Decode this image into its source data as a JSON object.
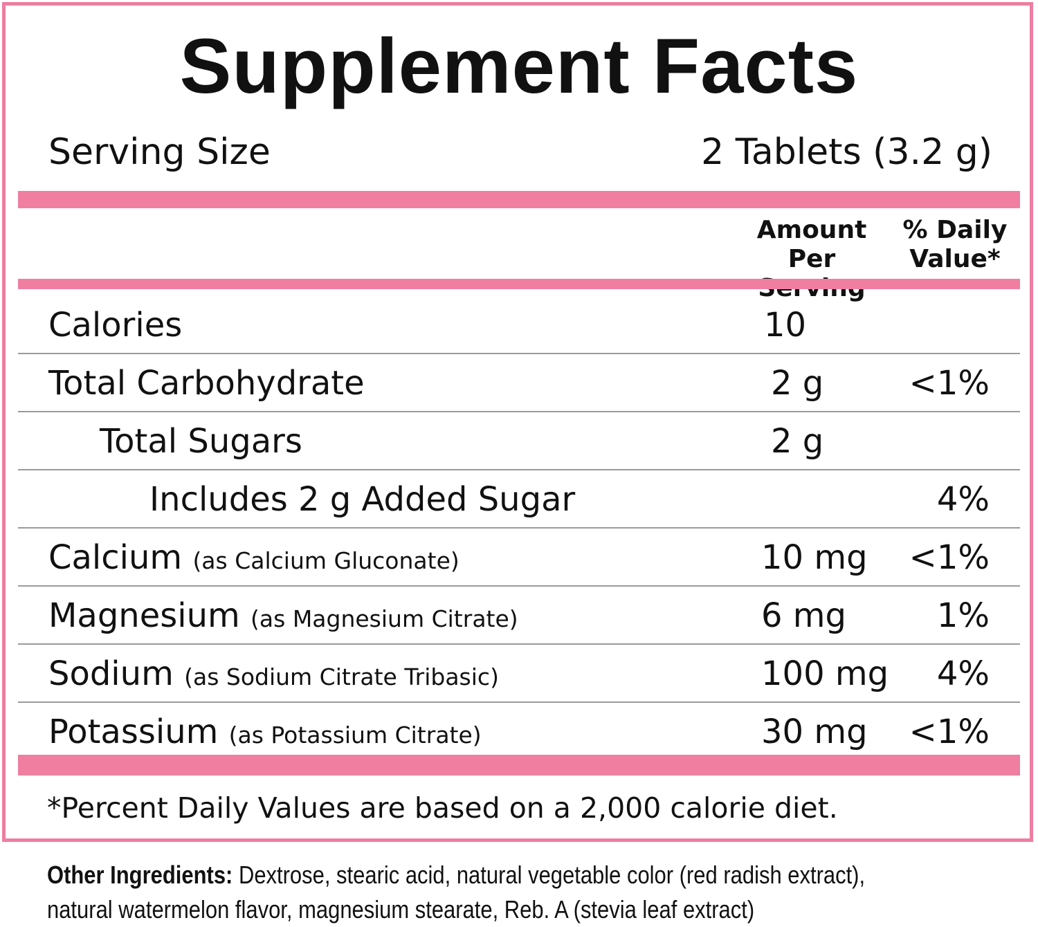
{
  "title": "Supplement Facts",
  "serving": {
    "label": "Serving Size",
    "value": "2 Tablets (3.2 g)"
  },
  "headers": {
    "amount_line1": "Amount",
    "amount_line2": "Per Serving",
    "dv_line1": "% Daily",
    "dv_line2": "Value*"
  },
  "rows": [
    {
      "name": "Calories",
      "source": "",
      "amount": "10",
      "dv": ""
    },
    {
      "name": "Total Carbohydrate",
      "source": "",
      "amount": "2 g",
      "dv": "<1%"
    },
    {
      "name": "Total Sugars",
      "source": "",
      "amount": "2 g",
      "dv": ""
    },
    {
      "name": "Includes 2 g Added Sugar",
      "source": "",
      "amount": "",
      "dv": "4%"
    },
    {
      "name": "Calcium",
      "source": "(as Calcium Gluconate)",
      "amount": "10 mg",
      "dv": "<1%"
    },
    {
      "name": "Magnesium",
      "source": "(as Magnesium Citrate)",
      "amount": "6 mg",
      "dv": "1%"
    },
    {
      "name": "Sodium",
      "source": "(as Sodium Citrate Tribasic)",
      "amount": "100 mg",
      "dv": "4%"
    },
    {
      "name": "Potassium",
      "source": "(as Potassium Citrate)",
      "amount": "30 mg",
      "dv": "<1%"
    }
  ],
  "footnote": "*Percent Daily Values are based on a 2,000 calorie diet.",
  "other_ingredients": {
    "label": "Other Ingredients:",
    "line1": "Dextrose, stearic acid, natural vegetable color (red radish extract),",
    "line2": "natural watermelon flavor, magnesium stearate, Reb. A (stevia leaf extract)"
  },
  "colors": {
    "accent": "#ef7ea0",
    "text": "#111111",
    "rule": "#9a9a9a"
  }
}
